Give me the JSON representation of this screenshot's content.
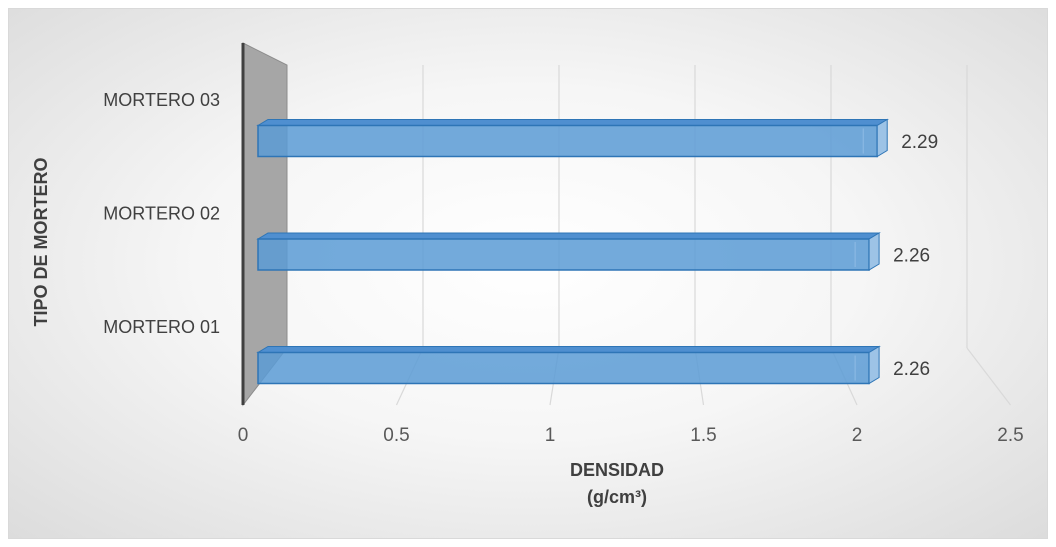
{
  "chart_data": {
    "type": "bar",
    "orientation": "horizontal",
    "style": "3d",
    "categories": [
      "MORTERO 01",
      "MORTERO 02",
      "MORTERO 03"
    ],
    "values": [
      2.26,
      2.26,
      2.29
    ],
    "data_labels": [
      "2.26",
      "2.26",
      "2.29"
    ],
    "xlabel_line1": "DENSIDAD",
    "xlabel_line2": "(g/cm³)",
    "ylabel": "TIPO DE MORTERO",
    "xlim": [
      0,
      2.5
    ],
    "xticks": [
      "0",
      "0.5",
      "1",
      "1.5",
      "2",
      "2.5"
    ],
    "grid": true,
    "legend": "none",
    "bar_color": "#5b9bd5",
    "bar_edge_color": "#2e75b6",
    "wall_color": "#a6a6a6"
  }
}
